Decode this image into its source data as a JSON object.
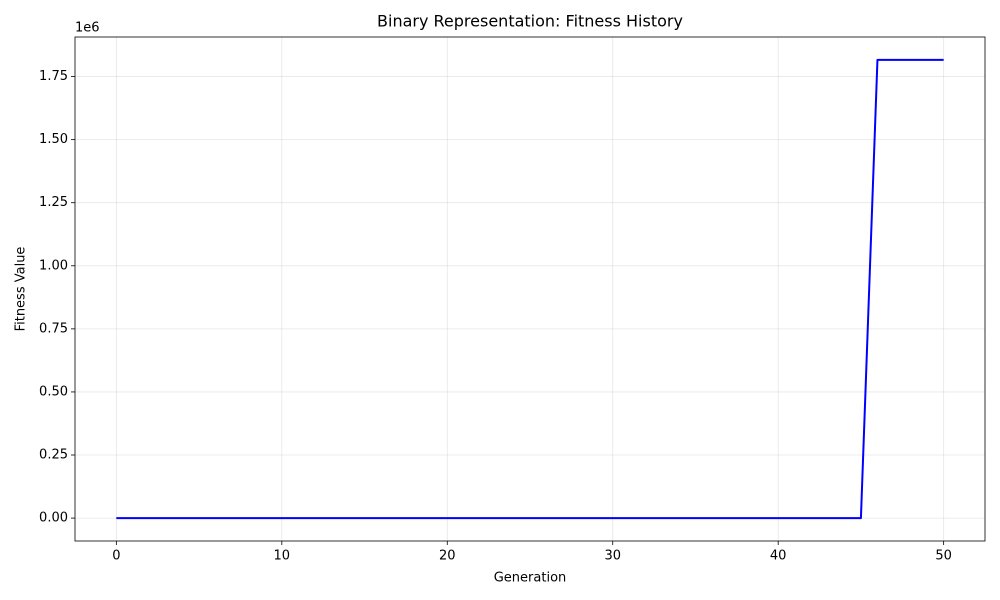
{
  "chart_data": {
    "type": "line",
    "title": "Binary Representation: Fitness History",
    "x_label": "Generation",
    "y_label": "Fitness Value",
    "y_offset_label": "1e6",
    "x": [
      0,
      1,
      2,
      3,
      4,
      5,
      6,
      7,
      8,
      9,
      10,
      11,
      12,
      13,
      14,
      15,
      16,
      17,
      18,
      19,
      20,
      21,
      22,
      23,
      24,
      25,
      26,
      27,
      28,
      29,
      30,
      31,
      32,
      33,
      34,
      35,
      36,
      37,
      38,
      39,
      40,
      41,
      42,
      43,
      44,
      45,
      46,
      47,
      48,
      49,
      50
    ],
    "values": [
      0,
      0,
      0,
      0,
      0,
      0,
      0,
      0,
      0,
      0,
      0,
      0,
      0,
      0,
      0,
      0,
      0,
      0,
      0,
      0,
      0,
      0,
      0,
      0,
      0,
      0,
      0,
      0,
      0,
      0,
      0,
      0,
      0,
      0,
      0,
      0,
      0,
      0,
      0,
      0,
      0,
      0,
      0,
      0,
      0,
      0,
      1816000,
      1816000,
      1816000,
      1816000,
      1816000
    ],
    "color": "#0000ff",
    "xlim": [
      -2.5,
      52.5
    ],
    "ylim": [
      -90800,
      1906800
    ],
    "xticks": [
      0,
      10,
      20,
      30,
      40,
      50
    ],
    "yticks": [
      {
        "value": 0,
        "label": "0.00"
      },
      {
        "value": 250000,
        "label": "0.25"
      },
      {
        "value": 500000,
        "label": "0.50"
      },
      {
        "value": 750000,
        "label": "0.75"
      },
      {
        "value": 1000000,
        "label": "1.00"
      },
      {
        "value": 1250000,
        "label": "1.25"
      },
      {
        "value": 1500000,
        "label": "1.50"
      },
      {
        "value": 1750000,
        "label": "1.75"
      }
    ],
    "grid": true
  }
}
